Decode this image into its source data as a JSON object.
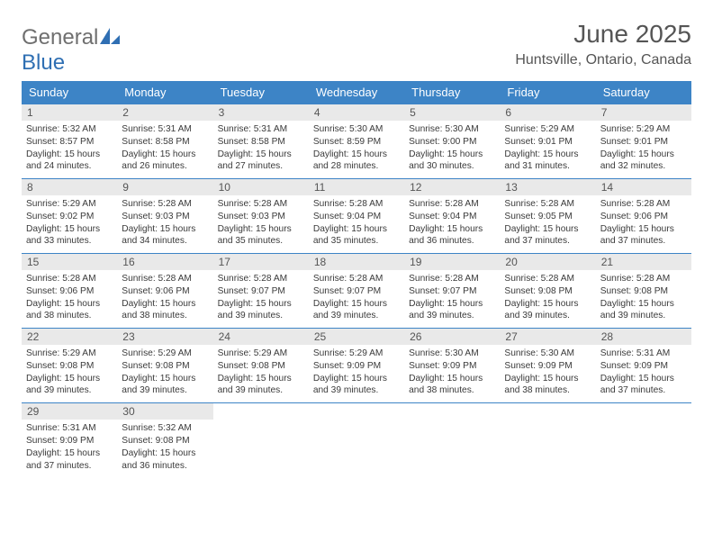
{
  "logo": {
    "general": "General",
    "blue": "Blue"
  },
  "colors": {
    "header_bg": "#3d84c6",
    "header_text": "#ffffff",
    "daynum_bg": "#e9e9e9",
    "daynum_text": "#555555",
    "title_text": "#555555",
    "body_text": "#3a3a3a",
    "logo_blue": "#2f6fb3",
    "logo_gray": "#6f6f6f",
    "row_border": "#3d84c6"
  },
  "title": "June 2025",
  "location": "Huntsville, Ontario, Canada",
  "weekdays": [
    "Sunday",
    "Monday",
    "Tuesday",
    "Wednesday",
    "Thursday",
    "Friday",
    "Saturday"
  ],
  "weeks": [
    [
      {
        "n": "1",
        "sr": "5:32 AM",
        "ss": "8:57 PM",
        "dl": "15 hours and 24 minutes."
      },
      {
        "n": "2",
        "sr": "5:31 AM",
        "ss": "8:58 PM",
        "dl": "15 hours and 26 minutes."
      },
      {
        "n": "3",
        "sr": "5:31 AM",
        "ss": "8:58 PM",
        "dl": "15 hours and 27 minutes."
      },
      {
        "n": "4",
        "sr": "5:30 AM",
        "ss": "8:59 PM",
        "dl": "15 hours and 28 minutes."
      },
      {
        "n": "5",
        "sr": "5:30 AM",
        "ss": "9:00 PM",
        "dl": "15 hours and 30 minutes."
      },
      {
        "n": "6",
        "sr": "5:29 AM",
        "ss": "9:01 PM",
        "dl": "15 hours and 31 minutes."
      },
      {
        "n": "7",
        "sr": "5:29 AM",
        "ss": "9:01 PM",
        "dl": "15 hours and 32 minutes."
      }
    ],
    [
      {
        "n": "8",
        "sr": "5:29 AM",
        "ss": "9:02 PM",
        "dl": "15 hours and 33 minutes."
      },
      {
        "n": "9",
        "sr": "5:28 AM",
        "ss": "9:03 PM",
        "dl": "15 hours and 34 minutes."
      },
      {
        "n": "10",
        "sr": "5:28 AM",
        "ss": "9:03 PM",
        "dl": "15 hours and 35 minutes."
      },
      {
        "n": "11",
        "sr": "5:28 AM",
        "ss": "9:04 PM",
        "dl": "15 hours and 35 minutes."
      },
      {
        "n": "12",
        "sr": "5:28 AM",
        "ss": "9:04 PM",
        "dl": "15 hours and 36 minutes."
      },
      {
        "n": "13",
        "sr": "5:28 AM",
        "ss": "9:05 PM",
        "dl": "15 hours and 37 minutes."
      },
      {
        "n": "14",
        "sr": "5:28 AM",
        "ss": "9:06 PM",
        "dl": "15 hours and 37 minutes."
      }
    ],
    [
      {
        "n": "15",
        "sr": "5:28 AM",
        "ss": "9:06 PM",
        "dl": "15 hours and 38 minutes."
      },
      {
        "n": "16",
        "sr": "5:28 AM",
        "ss": "9:06 PM",
        "dl": "15 hours and 38 minutes."
      },
      {
        "n": "17",
        "sr": "5:28 AM",
        "ss": "9:07 PM",
        "dl": "15 hours and 39 minutes."
      },
      {
        "n": "18",
        "sr": "5:28 AM",
        "ss": "9:07 PM",
        "dl": "15 hours and 39 minutes."
      },
      {
        "n": "19",
        "sr": "5:28 AM",
        "ss": "9:07 PM",
        "dl": "15 hours and 39 minutes."
      },
      {
        "n": "20",
        "sr": "5:28 AM",
        "ss": "9:08 PM",
        "dl": "15 hours and 39 minutes."
      },
      {
        "n": "21",
        "sr": "5:28 AM",
        "ss": "9:08 PM",
        "dl": "15 hours and 39 minutes."
      }
    ],
    [
      {
        "n": "22",
        "sr": "5:29 AM",
        "ss": "9:08 PM",
        "dl": "15 hours and 39 minutes."
      },
      {
        "n": "23",
        "sr": "5:29 AM",
        "ss": "9:08 PM",
        "dl": "15 hours and 39 minutes."
      },
      {
        "n": "24",
        "sr": "5:29 AM",
        "ss": "9:08 PM",
        "dl": "15 hours and 39 minutes."
      },
      {
        "n": "25",
        "sr": "5:29 AM",
        "ss": "9:09 PM",
        "dl": "15 hours and 39 minutes."
      },
      {
        "n": "26",
        "sr": "5:30 AM",
        "ss": "9:09 PM",
        "dl": "15 hours and 38 minutes."
      },
      {
        "n": "27",
        "sr": "5:30 AM",
        "ss": "9:09 PM",
        "dl": "15 hours and 38 minutes."
      },
      {
        "n": "28",
        "sr": "5:31 AM",
        "ss": "9:09 PM",
        "dl": "15 hours and 37 minutes."
      }
    ],
    [
      {
        "n": "29",
        "sr": "5:31 AM",
        "ss": "9:09 PM",
        "dl": "15 hours and 37 minutes."
      },
      {
        "n": "30",
        "sr": "5:32 AM",
        "ss": "9:08 PM",
        "dl": "15 hours and 36 minutes."
      },
      null,
      null,
      null,
      null,
      null
    ]
  ],
  "labels": {
    "sunrise": "Sunrise: ",
    "sunset": "Sunset: ",
    "daylight": "Daylight: "
  }
}
